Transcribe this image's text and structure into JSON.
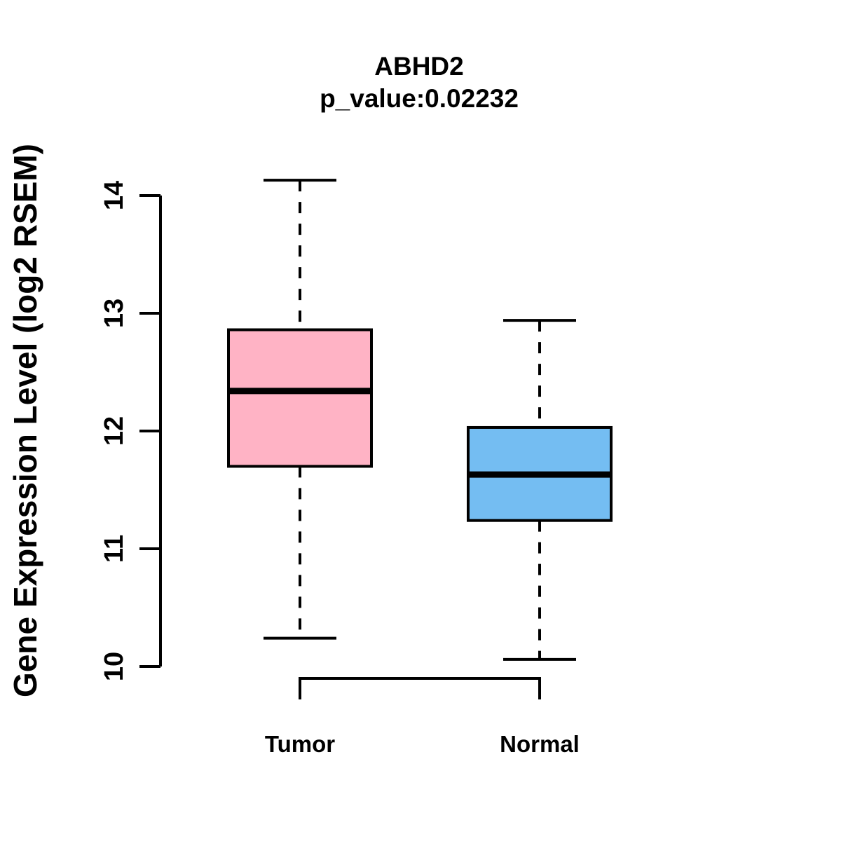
{
  "chart_data": {
    "type": "boxplot",
    "title": "ABHD2",
    "subtitle": "p_value:0.02232",
    "p_value": 0.02232,
    "ylabel": "Gene Expression Level (log2 RSEM)",
    "xlabel": "",
    "yticks": [
      10,
      11,
      12,
      13,
      14
    ],
    "ylim": [
      9.85,
      14.25
    ],
    "grid": false,
    "legend": "none",
    "categories": [
      "Tumor",
      "Normal"
    ],
    "groups": [
      {
        "label": "Tumor",
        "fill": "#FFB3C5",
        "whisker_low": 10.24,
        "q1": 11.7,
        "median": 12.34,
        "q3": 12.86,
        "whisker_high": 14.13
      },
      {
        "label": "Normal",
        "fill": "#74BDF2",
        "whisker_low": 10.06,
        "q1": 11.24,
        "median": 11.63,
        "q3": 12.03,
        "whisker_high": 12.94
      }
    ],
    "line_color": "#000000",
    "background_color": "#FFFFFF"
  }
}
